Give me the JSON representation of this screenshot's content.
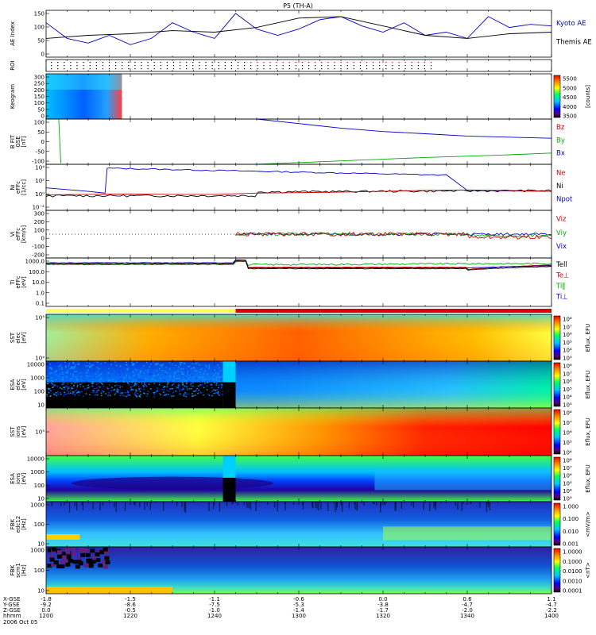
{
  "title": "P5 (TH-A)",
  "date_label": "2006 Oct 05",
  "x_axis": {
    "row_labels": [
      "X-GSE",
      "Y-GSE",
      "Z-GSE",
      "hhmm"
    ],
    "ticks": [
      {
        "x": "-1.8",
        "y": "-9.2",
        "z": "0.0",
        "t": "1200"
      },
      {
        "x": "-1.5",
        "y": "-8.6",
        "z": "-0.5",
        "t": "1220"
      },
      {
        "x": "-1.1",
        "y": "-7.5",
        "z": "-1.0",
        "t": "1240"
      },
      {
        "x": "-0.6",
        "y": "-5.3",
        "z": "-1.4",
        "t": "1300"
      },
      {
        "x": "0.0",
        "y": "-3.8",
        "z": "-1.7",
        "t": "1320"
      },
      {
        "x": "0.6",
        "y": "-4.7",
        "z": "-2.0",
        "t": "1340"
      },
      {
        "x": "1.1",
        "y": "-4.7",
        "z": "-2.2",
        "t": "1400"
      }
    ]
  },
  "panels": [
    {
      "id": "ae",
      "ylabel": "AE Index",
      "yticks": [
        "150",
        "100",
        "50",
        "0"
      ],
      "legend": [
        {
          "text": "Kyoto AE",
          "color": "#0000cc"
        },
        {
          "text": "Themis AE",
          "color": "#000000"
        }
      ]
    },
    {
      "id": "roi",
      "ylabel": "ROI",
      "yticks": [],
      "legend": []
    },
    {
      "id": "keogram",
      "ylabel": "Keogram",
      "yticks": [
        "300",
        "250",
        "200",
        "150",
        "100",
        "50",
        "0"
      ],
      "legend": [],
      "cbar_label": "[counts]",
      "cbar_ticks": [
        "5500",
        "5000",
        "4500",
        "4000",
        "3500"
      ]
    },
    {
      "id": "bfit",
      "ylabel": "B FIT",
      "ylabel2": "GSE",
      "ylabel3": "[nT]",
      "yticks": [
        "100",
        "50",
        "0",
        "-50",
        "-100"
      ],
      "legend": [
        {
          "text": "Bz",
          "color": "#cc0000"
        },
        {
          "text": "By",
          "color": "#00aa00"
        },
        {
          "text": "Bx",
          "color": "#0000cc"
        }
      ]
    },
    {
      "id": "ni",
      "ylabel": "Ni",
      "ylabel2": "eFFc",
      "ylabel3": "[1/cc]",
      "yticks": [
        "10⁴",
        "10²",
        "10⁰",
        "10⁻²"
      ],
      "legend": [
        {
          "text": "Ne",
          "color": "#cc0000"
        },
        {
          "text": "Ni",
          "color": "#000000"
        },
        {
          "text": "Npot",
          "color": "#0000cc"
        }
      ]
    },
    {
      "id": "vi",
      "ylabel": "Vi",
      "ylabel2": "eFFc",
      "ylabel3": "[km/s]",
      "yticks": [
        "300",
        "200",
        "100",
        "0",
        "-100",
        "-200"
      ],
      "legend": [
        {
          "text": "Viz",
          "color": "#cc0000"
        },
        {
          "text": "Viy",
          "color": "#00aa00"
        },
        {
          "text": "Vix",
          "color": "#0000cc"
        }
      ]
    },
    {
      "id": "ti",
      "ylabel": "Ti",
      "ylabel2": "eFFc",
      "ylabel3": "[eV]",
      "yticks": [
        "1000.0",
        "100.0",
        "10.0",
        "1.0",
        "0.1"
      ],
      "legend": [
        {
          "text": "Tell",
          "color": "#000000"
        },
        {
          "text": "Te⊥",
          "color": "#cc0000"
        },
        {
          "text": "Ti‖",
          "color": "#00aa00"
        },
        {
          "text": "Ti⊥",
          "color": "#0000cc"
        }
      ]
    },
    {
      "id": "sst_e",
      "ylabel": "SST",
      "ylabel2": "elec",
      "ylabel3": "[eV]",
      "yticks": [
        "10⁵",
        "10⁴"
      ],
      "legend": [],
      "cbar_label": "Eflux, EFU",
      "cbar_ticks": [
        "10⁸",
        "10⁷",
        "10⁶",
        "10⁵",
        "10⁴",
        "10³"
      ]
    },
    {
      "id": "esa_e",
      "ylabel": "ESA",
      "ylabel2": "elec",
      "ylabel3": "[eV]",
      "yticks": [
        "10000",
        "1000",
        "100",
        "10"
      ],
      "legend": [],
      "cbar_label": "Eflux, EFU",
      "cbar_ticks": [
        "10⁸",
        "10⁷",
        "10⁶",
        "10⁵",
        "10⁴",
        "10³"
      ]
    },
    {
      "id": "sst_i",
      "ylabel": "SST",
      "ylabel2": "ions",
      "ylabel3": "[eV]",
      "yticks": [
        "10⁵"
      ],
      "legend": [],
      "cbar_label": "Eflux, EFU",
      "cbar_ticks": [
        "10⁸",
        "10⁷",
        "10⁶",
        "10⁵",
        "10⁴"
      ]
    },
    {
      "id": "esa_i",
      "ylabel": "ESA",
      "ylabel2": "ions",
      "ylabel3": "[eV]",
      "yticks": [
        "10000",
        "1000",
        "100",
        "10"
      ],
      "legend": [],
      "cbar_label": "Eflux, EFU",
      "cbar_ticks": [
        "10⁸",
        "10⁷",
        "10⁶",
        "10⁵",
        "10⁴",
        "10³"
      ]
    },
    {
      "id": "fbk_e",
      "ylabel": "FBK",
      "ylabel2": "edc12",
      "ylabel3": "[Hz]",
      "yticks": [
        "1000",
        "100",
        "10"
      ],
      "legend": [],
      "cbar_label": "<mV/m>",
      "cbar_ticks": [
        "1.000",
        "0.100",
        "0.010",
        "0.001"
      ]
    },
    {
      "id": "fbk_b",
      "ylabel": "FBK",
      "ylabel2": "scm1",
      "ylabel3": "[Hz]",
      "yticks": [
        "1000",
        "100",
        "10"
      ],
      "legend": [],
      "cbar_label": "<nT>",
      "cbar_ticks": [
        "1.0000",
        "0.1000",
        "0.0100",
        "0.0010",
        "0.0001"
      ]
    }
  ],
  "chart_data": {
    "type": "line",
    "title": "P5 (TH-A)",
    "x_range": [
      "12:00",
      "14:00"
    ],
    "series": [
      {
        "name": "Kyoto AE",
        "panel": "ae",
        "x": [
          0,
          5,
          10,
          15,
          20,
          25,
          30,
          35,
          40,
          45,
          50,
          55,
          60,
          65,
          70,
          75,
          80,
          85,
          90,
          95,
          100,
          105,
          110,
          115,
          120
        ],
        "values": [
          110,
          60,
          45,
          70,
          40,
          60,
          110,
          80,
          60,
          140,
          90,
          70,
          90,
          120,
          130,
          100,
          80,
          110,
          70,
          80,
          60,
          130,
          95,
          105,
          100
        ]
      },
      {
        "name": "Themis AE",
        "panel": "ae",
        "x": [
          0,
          10,
          20,
          30,
          40,
          50,
          60,
          70,
          80,
          90,
          100,
          110,
          120
        ],
        "values": [
          60,
          70,
          75,
          85,
          80,
          95,
          125,
          130,
          100,
          70,
          60,
          75,
          80
        ]
      },
      {
        "name": "Bx",
        "panel": "bfit",
        "x": [
          50,
          60,
          70,
          80,
          90,
          100,
          110,
          120
        ],
        "values": [
          100,
          80,
          60,
          45,
          35,
          25,
          20,
          15
        ]
      },
      {
        "name": "By",
        "panel": "bfit",
        "x": [
          0,
          3,
          5,
          50,
          70,
          90,
          110,
          120
        ],
        "values": [
          null,
          100,
          -95,
          -100,
          -85,
          -70,
          -58,
          -50
        ]
      },
      {
        "name": "Ne",
        "panel": "ni",
        "x": [
          0,
          10,
          20,
          30,
          40,
          50,
          60,
          70,
          80,
          90,
          100,
          110,
          120
        ],
        "values": [
          0.5,
          0.6,
          0.7,
          0.6,
          0.6,
          1,
          1.2,
          1.5,
          2,
          3,
          3.5,
          2.8,
          2
        ]
      }
    ]
  }
}
